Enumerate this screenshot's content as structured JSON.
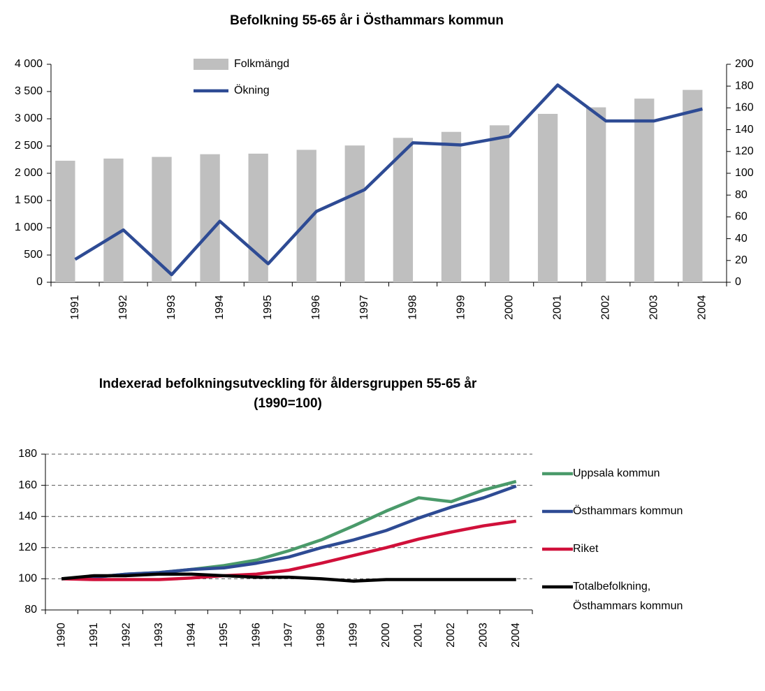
{
  "chart_data": [
    {
      "type": "bar_line",
      "title": "Befolkning 55-65 år i Östhammars kommun",
      "categories": [
        "1991",
        "1992",
        "1993",
        "1994",
        "1995",
        "1996",
        "1997",
        "1998",
        "1999",
        "2000",
        "2001",
        "2002",
        "2003",
        "2004"
      ],
      "series": [
        {
          "name": "Folkmängd",
          "color": "#bfbfbf",
          "kind": "bar",
          "values": [
            2230,
            2270,
            2300,
            2350,
            2360,
            2430,
            2510,
            2650,
            2760,
            2880,
            3090,
            3210,
            3370,
            3530
          ]
        },
        {
          "name": "Ökning",
          "color": "#2e4b94",
          "kind": "line",
          "axis": "y2",
          "values": [
            21,
            48,
            7,
            56,
            17,
            65,
            85,
            128,
            126,
            134,
            181,
            148,
            148,
            159
          ]
        }
      ],
      "ylim": [
        0,
        4000
      ],
      "yticks": [
        0,
        500,
        {
          "value": 1000,
          "label": "1 000"
        },
        {
          "value": 1500,
          "label": "1 500"
        },
        {
          "value": 2000,
          "label": "2 000"
        },
        {
          "value": 2500,
          "label": "2 500"
        },
        {
          "value": 3000,
          "label": "3 000"
        },
        {
          "value": 3500,
          "label": "3 500"
        },
        {
          "value": 4000,
          "label": "4 000"
        }
      ],
      "y2lim": [
        0,
        200
      ],
      "y2ticks": [
        0,
        20,
        40,
        60,
        80,
        100,
        120,
        140,
        160,
        180,
        200
      ],
      "grid": false
    },
    {
      "type": "line",
      "title": "Indexerad befolkningsutveckling för åldersgruppen 55-65 år",
      "subtitle": "(1990=100)",
      "categories": [
        "1990",
        "1991",
        "1992",
        "1993",
        "1994",
        "1995",
        "1996",
        "1997",
        "1998",
        "1999",
        "2000",
        "2001",
        "2002",
        "2003",
        "2004"
      ],
      "series": [
        {
          "name": "Uppsala kommun",
          "color": "#4a9a6a",
          "values": [
            100,
            101,
            103,
            104,
            106,
            108.5,
            112,
            118,
            125,
            134,
            143.5,
            152,
            149.5,
            157,
            162.5
          ]
        },
        {
          "name": "Östhammars kommun",
          "color": "#2e4b94",
          "values": [
            100,
            101,
            103,
            104,
            106,
            107,
            110,
            114,
            120,
            125,
            131,
            139,
            146,
            152,
            159.5
          ]
        },
        {
          "name": "Riket",
          "color": "#d0103a",
          "values": [
            100,
            99.5,
            99.5,
            99.5,
            100.5,
            102,
            103,
            105.5,
            110,
            115,
            120,
            125.5,
            130,
            134,
            137
          ]
        },
        {
          "name": "Totalbefolkning, Östhammars kommun",
          "color": "#000000",
          "values": [
            100,
            102,
            102,
            103,
            103,
            102,
            101,
            101,
            100,
            98.5,
            99.5,
            99.5,
            99.5,
            99.5,
            99.5
          ]
        }
      ],
      "ylim": [
        80,
        180
      ],
      "yticks": [
        80,
        100,
        120,
        140,
        160,
        180
      ],
      "grid": true
    }
  ]
}
